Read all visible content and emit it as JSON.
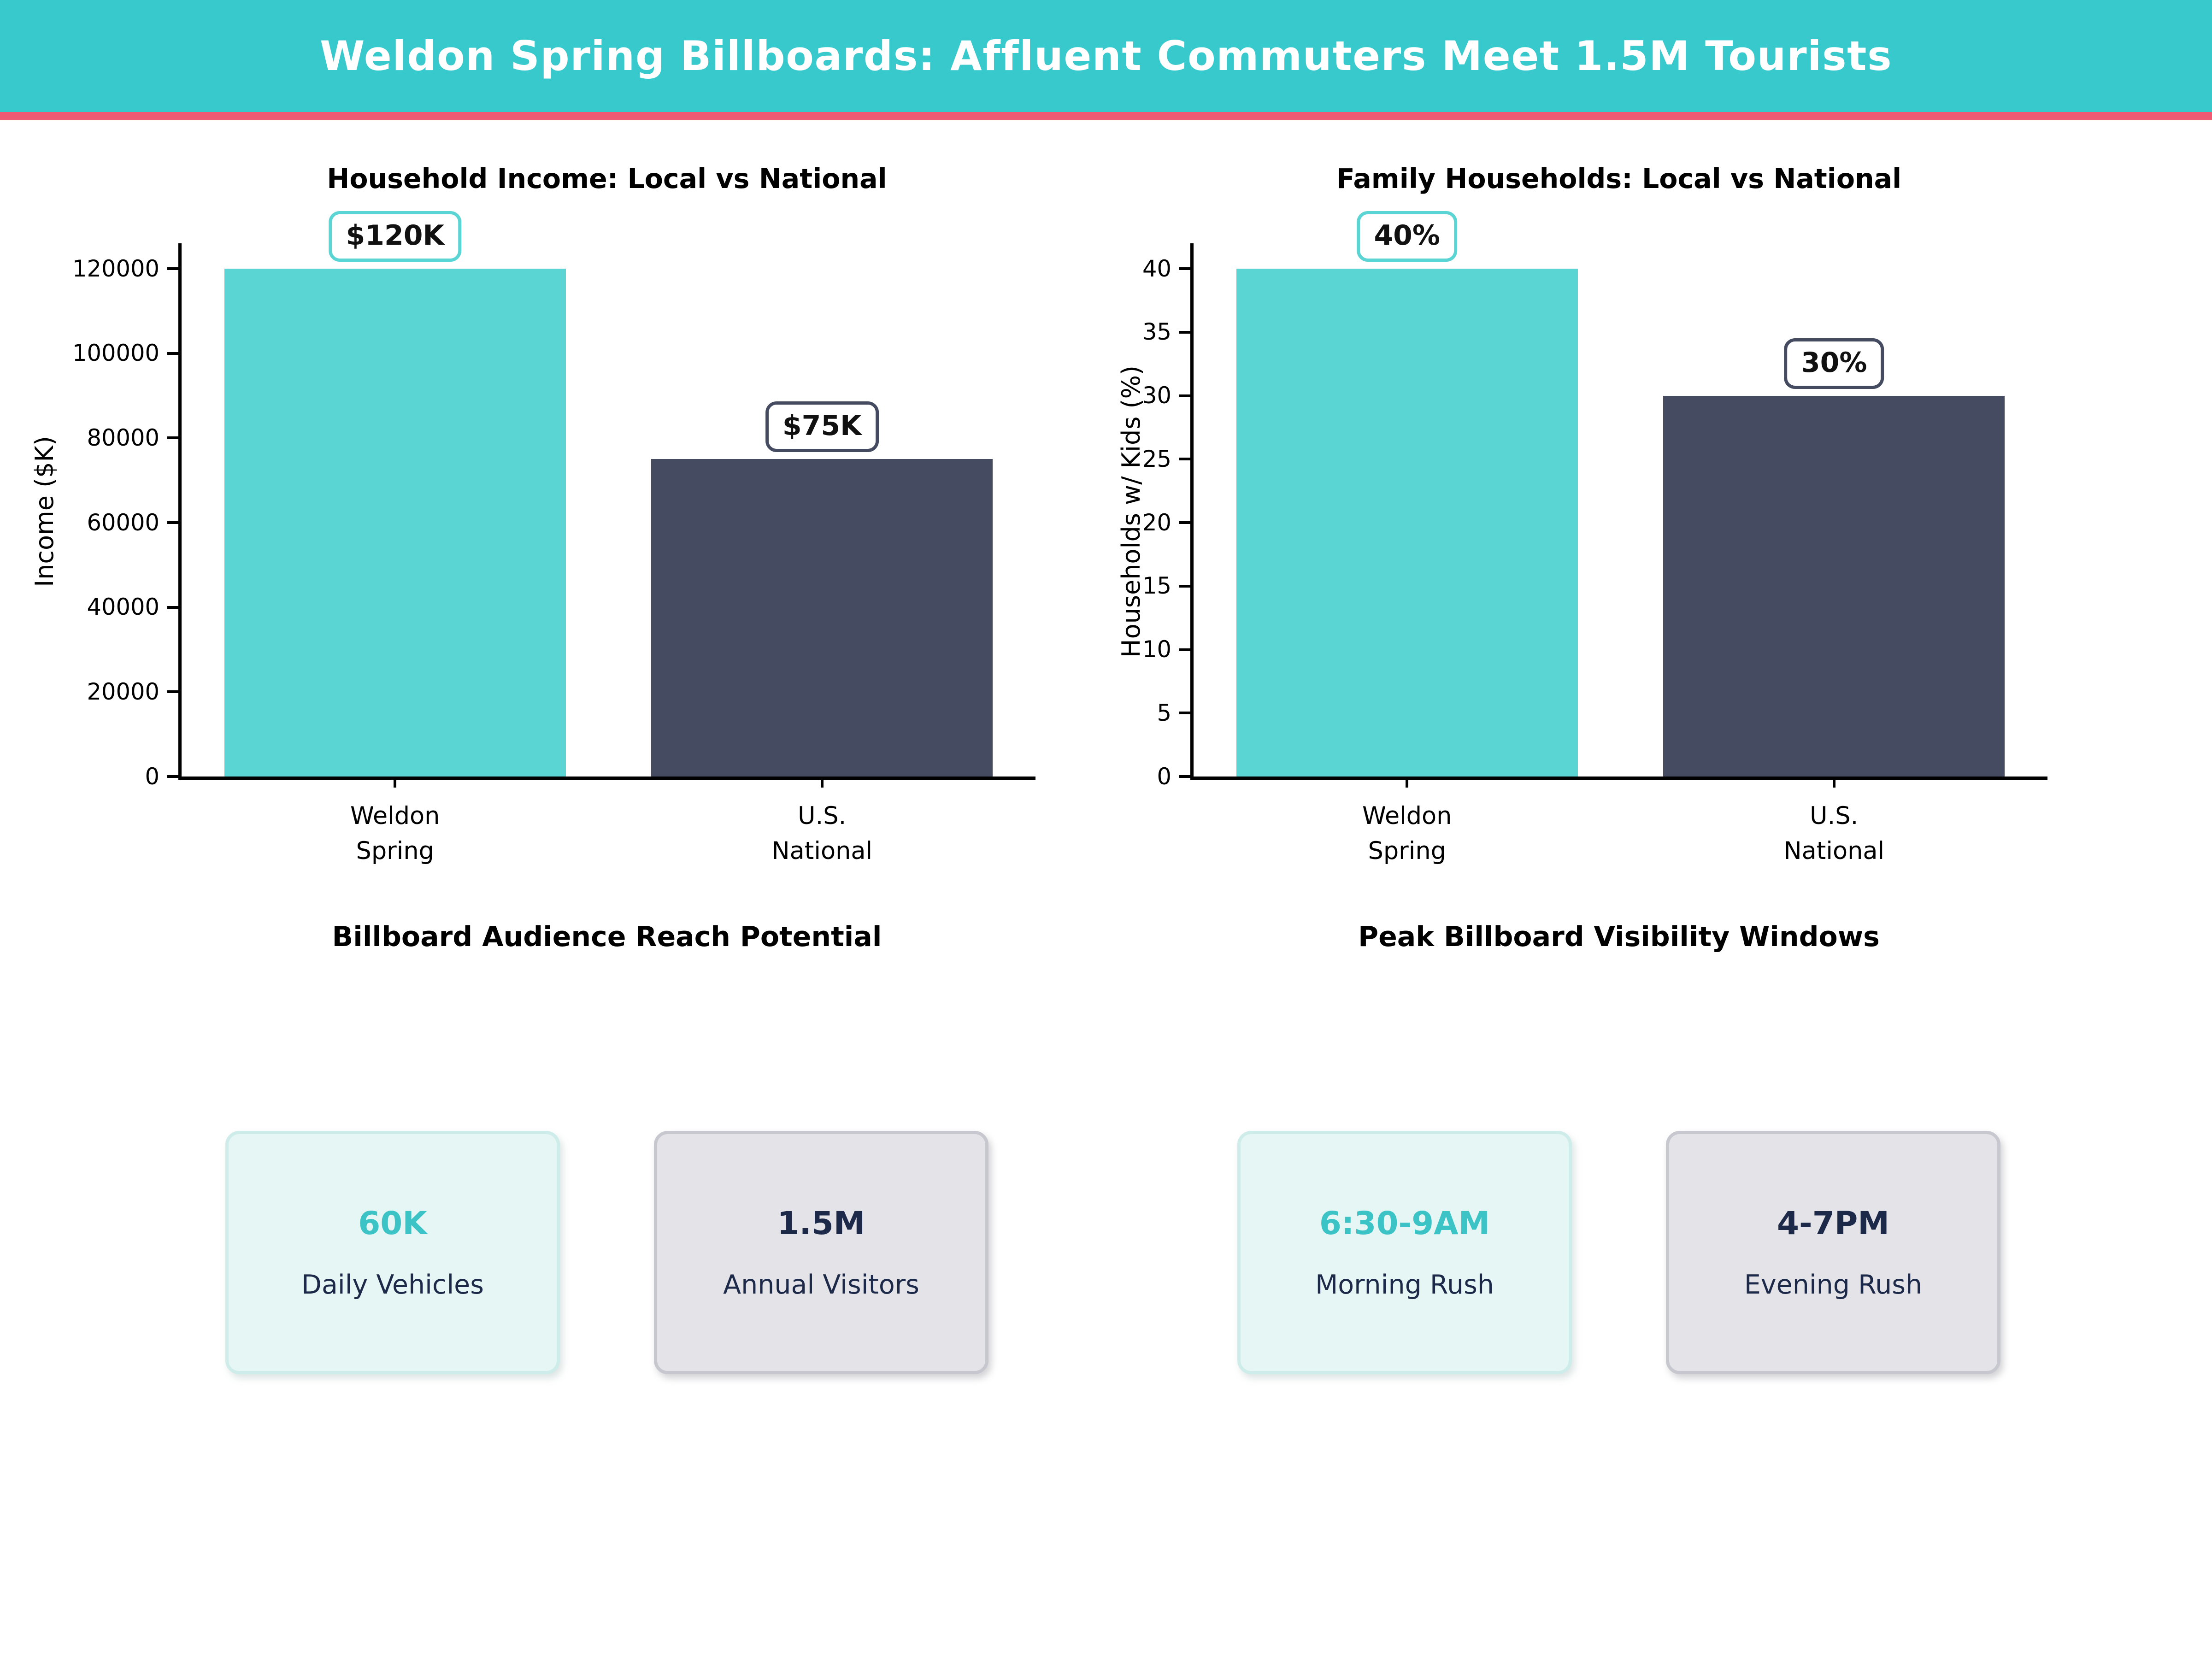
{
  "header": {
    "title": "Weldon Spring Billboards: Affluent Commuters Meet 1.5M Tourists",
    "bg_color": "#38c9cd",
    "accent_line_color": "#f05a72"
  },
  "colors": {
    "bar_teal": "#5bd5d3",
    "bar_navy": "#454c61",
    "value_teal": "#3bc3c6",
    "value_navy": "#1d2948"
  },
  "chart_data": [
    {
      "type": "bar",
      "title": "Household Income: Local vs National",
      "ylabel": "Income ($K)",
      "xlabel": "",
      "categories": [
        "Weldon\nSpring",
        "U.S.\nNational"
      ],
      "values": [
        120000,
        75000
      ],
      "bar_labels": [
        "$120K",
        "$75K"
      ],
      "bar_colors": [
        "#5bd5d3",
        "#454c61"
      ],
      "yticks": [
        0,
        20000,
        40000,
        60000,
        80000,
        100000,
        120000
      ],
      "ylim": [
        0,
        126000
      ],
      "grid": false,
      "legend": null
    },
    {
      "type": "bar",
      "title": "Family Households: Local vs National",
      "ylabel": "Households w/ Kids (%)",
      "xlabel": "",
      "categories": [
        "Weldon\nSpring",
        "U.S.\nNational"
      ],
      "values": [
        40,
        30
      ],
      "bar_labels": [
        "40%",
        "30%"
      ],
      "bar_colors": [
        "#5bd5d3",
        "#454c61"
      ],
      "yticks": [
        0,
        5,
        10,
        15,
        20,
        25,
        30,
        35,
        40
      ],
      "ylim": [
        0,
        42
      ],
      "grid": false,
      "legend": null
    }
  ],
  "sections": [
    {
      "title": "Billboard Audience Reach Potential",
      "cards": [
        {
          "value": "60K",
          "label": "Daily Vehicles",
          "style": "teal"
        },
        {
          "value": "1.5M",
          "label": "Annual Visitors",
          "style": "gray"
        }
      ]
    },
    {
      "title": "Peak Billboard Visibility Windows",
      "cards": [
        {
          "value": "6:30-9AM",
          "label": "Morning Rush",
          "style": "teal"
        },
        {
          "value": "4-7PM",
          "label": "Evening Rush",
          "style": "gray"
        }
      ]
    }
  ]
}
